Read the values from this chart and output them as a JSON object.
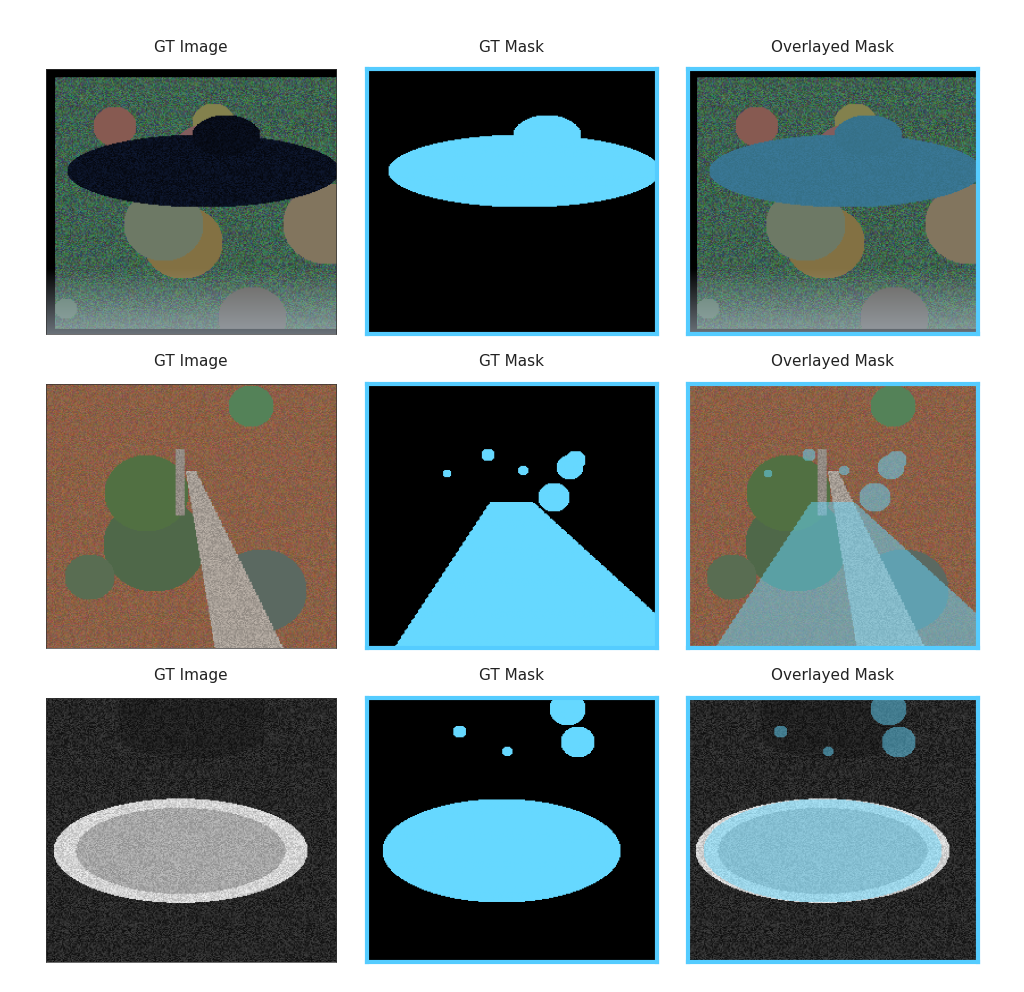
{
  "title_row1": [
    "GT Image",
    "GT Mask",
    "Overlayed Mask"
  ],
  "title_row2": [
    "GT Image",
    "GT Mask",
    "Overlayed Mask"
  ],
  "title_row3": [
    "GT Image",
    "GT Mask",
    "Overlayed Mask"
  ],
  "background_color": "#ffffff",
  "mask_color": [
    0.4,
    0.85,
    1.0
  ],
  "mask_alpha": 0.5,
  "border_color": "#55ccff",
  "border_width": 3,
  "fig_width": 10.24,
  "fig_height": 9.92,
  "title_fontsize": 11,
  "title_color": "#222222"
}
